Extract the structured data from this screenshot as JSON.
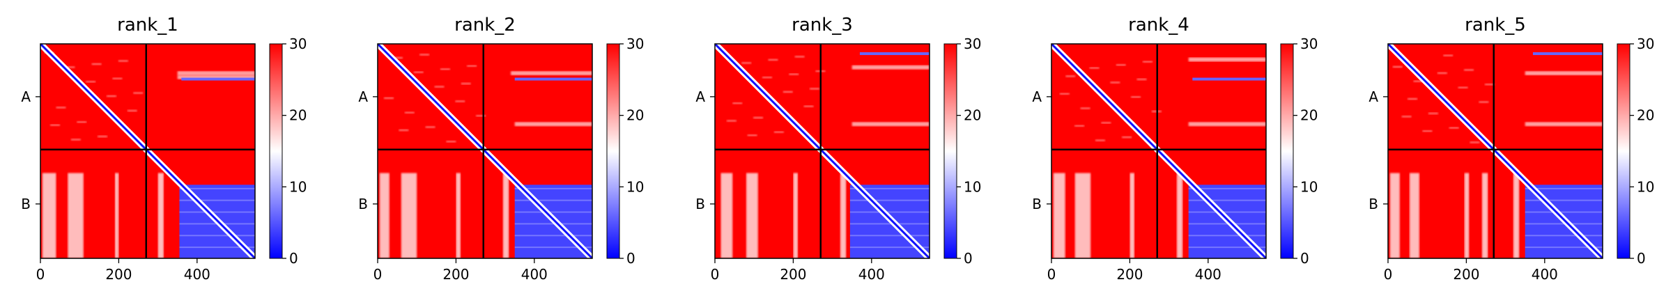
{
  "chart_data": {
    "type": "heatmap",
    "colormap": {
      "low": "#0000ff",
      "mid": "#ffffff",
      "high": "#ff0000",
      "vmin": 0,
      "vmax": 30
    },
    "colorbar_ticks": [
      "0",
      "10",
      "20",
      "30"
    ],
    "x_ticks": [
      {
        "label": "0",
        "value": 0
      },
      {
        "label": "200",
        "value": 200
      },
      {
        "label": "400",
        "value": 400
      }
    ],
    "x_range": [
      0,
      548
    ],
    "y_range": [
      0,
      548
    ],
    "chain_break": 270,
    "chains": [
      {
        "label": "A",
        "center": 135
      },
      {
        "label": "B",
        "center": 409
      }
    ],
    "panels": [
      {
        "title": "rank_1",
        "blue_block": {
          "x0": 355,
          "x1": 548,
          "y0": 360,
          "y1": 548,
          "value": 4
        },
        "white_stripes": [
          {
            "x0": 5,
            "x1": 40
          },
          {
            "x0": 70,
            "x1": 110
          },
          {
            "x0": 190,
            "x1": 200
          },
          {
            "x0": 300,
            "x1": 315
          }
        ],
        "white_bands_chainA": [
          {
            "y": 75,
            "x0": 350,
            "x1": 548
          },
          {
            "y": 85,
            "x0": 350,
            "x1": 548
          }
        ],
        "blue_dots_chainA": [
          {
            "y": 90,
            "x0": 360,
            "x1": 548
          }
        ]
      },
      {
        "title": "rank_2",
        "blue_block": {
          "x0": 350,
          "x1": 548,
          "y0": 360,
          "y1": 548,
          "value": 4
        },
        "white_stripes": [
          {
            "x0": 5,
            "x1": 30
          },
          {
            "x0": 60,
            "x1": 100
          },
          {
            "x0": 200,
            "x1": 212
          },
          {
            "x0": 320,
            "x1": 335
          }
        ],
        "white_bands_chainA": [
          {
            "y": 75,
            "x0": 340,
            "x1": 548
          },
          {
            "y": 205,
            "x0": 350,
            "x1": 548
          }
        ],
        "blue_dots_chainA": [
          {
            "y": 90,
            "x0": 350,
            "x1": 548
          }
        ]
      },
      {
        "title": "rank_3",
        "blue_block": {
          "x0": 345,
          "x1": 548,
          "y0": 360,
          "y1": 548,
          "value": 4
        },
        "white_stripes": [
          {
            "x0": 15,
            "x1": 45
          },
          {
            "x0": 80,
            "x1": 110
          },
          {
            "x0": 200,
            "x1": 212
          },
          {
            "x0": 320,
            "x1": 335
          }
        ],
        "white_bands_chainA": [
          {
            "y": 60,
            "x0": 350,
            "x1": 548
          },
          {
            "y": 205,
            "x0": 350,
            "x1": 548
          }
        ],
        "blue_dots_chainA": [
          {
            "y": 25,
            "x0": 370,
            "x1": 548
          }
        ]
      },
      {
        "title": "rank_4",
        "blue_block": {
          "x0": 350,
          "x1": 548,
          "y0": 360,
          "y1": 548,
          "value": 4
        },
        "white_stripes": [
          {
            "x0": 5,
            "x1": 35
          },
          {
            "x0": 60,
            "x1": 100
          },
          {
            "x0": 200,
            "x1": 212
          },
          {
            "x0": 320,
            "x1": 335
          }
        ],
        "white_bands_chainA": [
          {
            "y": 40,
            "x0": 350,
            "x1": 548
          },
          {
            "y": 205,
            "x0": 350,
            "x1": 548
          }
        ],
        "blue_dots_chainA": [
          {
            "y": 90,
            "x0": 360,
            "x1": 548
          }
        ]
      },
      {
        "title": "rank_5",
        "blue_block": {
          "x0": 350,
          "x1": 548,
          "y0": 360,
          "y1": 548,
          "value": 4
        },
        "white_stripes": [
          {
            "x0": 5,
            "x1": 30
          },
          {
            "x0": 55,
            "x1": 80
          },
          {
            "x0": 195,
            "x1": 207
          },
          {
            "x0": 240,
            "x1": 255
          },
          {
            "x0": 320,
            "x1": 335
          }
        ],
        "white_bands_chainA": [
          {
            "y": 75,
            "x0": 350,
            "x1": 548
          },
          {
            "y": 205,
            "x0": 350,
            "x1": 548
          }
        ],
        "blue_dots_chainA": [
          {
            "y": 25,
            "x0": 370,
            "x1": 548
          }
        ]
      }
    ]
  }
}
